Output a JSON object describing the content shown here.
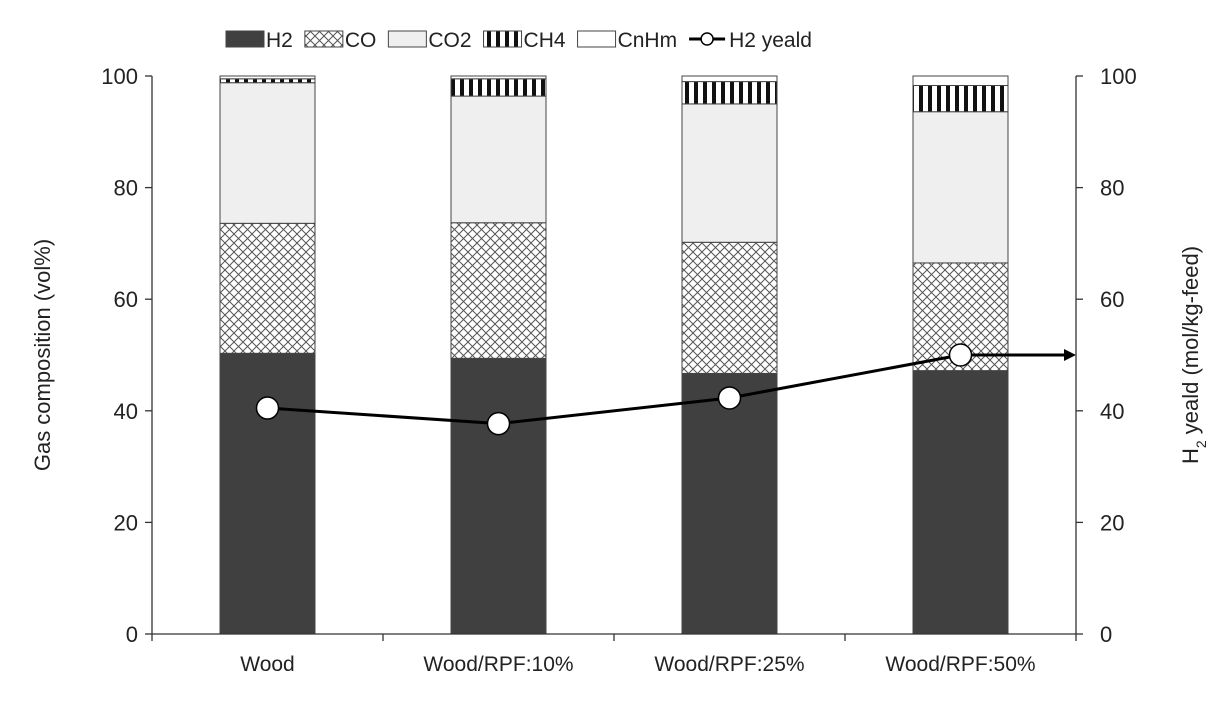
{
  "chart_data": {
    "type": "bar",
    "stacked": true,
    "categories": [
      "Wood",
      "Wood/RPF:10%",
      "Wood/RPF:25%",
      "Wood/RPF:50%"
    ],
    "series": [
      {
        "name": "H2",
        "axis": "left",
        "pattern": "solid-dark",
        "values": [
          50.3,
          49.4,
          46.7,
          47.2
        ]
      },
      {
        "name": "CO",
        "axis": "left",
        "pattern": "crosshatch",
        "values": [
          23.3,
          24.3,
          23.5,
          19.3
        ]
      },
      {
        "name": "CO2",
        "axis": "left",
        "pattern": "light-fill",
        "values": [
          25.2,
          22.7,
          24.8,
          27.1
        ]
      },
      {
        "name": "CH4",
        "axis": "left",
        "pattern": "vertical-stripes",
        "values": [
          0.7,
          3.1,
          4.0,
          4.7
        ]
      },
      {
        "name": "CnHm",
        "axis": "left",
        "pattern": "white",
        "values": [
          0.5,
          0.5,
          1.0,
          1.7
        ]
      }
    ],
    "line_series": {
      "name": "H2 yeald",
      "axis": "right",
      "values": [
        40.5,
        37.7,
        42.3,
        50.0
      ]
    },
    "ylabel": "Gas composition (vol%)",
    "ylabel_right": {
      "main": "H",
      "sub": "2",
      "rest": " yeald (mol/kg-feed)"
    },
    "ylim": [
      0,
      100
    ],
    "ylim_right": [
      0,
      100
    ],
    "yticks": [
      0,
      20,
      40,
      60,
      80,
      100
    ],
    "yticks_right": [
      0,
      20,
      40,
      60,
      80,
      100
    ],
    "legend_position": "top",
    "grid": false,
    "colors": {
      "h2": "#404040",
      "co_hatch": "#555555",
      "co2": "#efefef",
      "ch4_stripe": "#111111",
      "cnhm": "#ffffff",
      "bar_outline": "#444444",
      "line": "#000000",
      "marker_fill": "#ffffff",
      "axis": "#333333"
    }
  }
}
